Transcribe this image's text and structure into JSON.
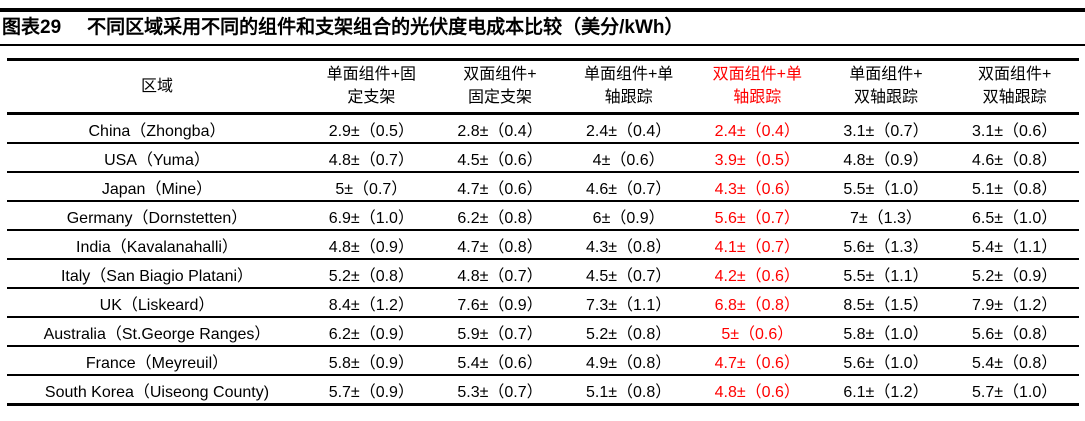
{
  "figure": {
    "number": "图表29",
    "title": "不同区域采用不同的组件和支架组合的光伏度电成本比较（美分/kWh）"
  },
  "colors": {
    "highlight_red": "#ff0000",
    "text": "#000000",
    "background": "#ffffff",
    "rule": "#000000"
  },
  "table": {
    "region_header": "区域",
    "columns": [
      {
        "line1": "单面组件+固",
        "line2": "定支架",
        "highlight": false
      },
      {
        "line1": "双面组件+",
        "line2": "固定支架",
        "highlight": false
      },
      {
        "line1": "单面组件+单",
        "line2": "轴跟踪",
        "highlight": false
      },
      {
        "line1": "双面组件+单",
        "line2": "轴跟踪",
        "highlight": true
      },
      {
        "line1": "单面组件+",
        "line2": "双轴跟踪",
        "highlight": false
      },
      {
        "line1": "双面组件+",
        "line2": "双轴跟踪",
        "highlight": false
      }
    ],
    "rows": [
      {
        "region": "China（Zhongba）",
        "cells": [
          "2.9±（0.5）",
          "2.8±（0.4）",
          "2.4±（0.4）",
          "2.4±（0.4）",
          "3.1±（0.7）",
          "3.1±（0.6）"
        ]
      },
      {
        "region": "USA（Yuma）",
        "cells": [
          "4.8±（0.7）",
          "4.5±（0.6）",
          "4±（0.6）",
          "3.9±（0.5）",
          "4.8±（0.9）",
          "4.6±（0.8）"
        ]
      },
      {
        "region": "Japan（Mine）",
        "cells": [
          "5±（0.7）",
          "4.7±（0.6）",
          "4.6±（0.7）",
          "4.3±（0.6）",
          "5.5±（1.0）",
          "5.1±（0.8）"
        ]
      },
      {
        "region": "Germany（Dornstetten）",
        "cells": [
          "6.9±（1.0）",
          "6.2±（0.8）",
          "6±（0.9）",
          "5.6±（0.7）",
          "7±（1.3）",
          "6.5±（1.0）"
        ]
      },
      {
        "region": "India（Kavalanahalli）",
        "cells": [
          "4.8±（0.9）",
          "4.7±（0.8）",
          "4.3±（0.8）",
          "4.1±（0.7）",
          "5.6±（1.3）",
          "5.4±（1.1）"
        ]
      },
      {
        "region": "Italy（San Biagio Platani）",
        "cells": [
          "5.2±（0.8）",
          "4.8±（0.7）",
          "4.5±（0.7）",
          "4.2±（0.6）",
          "5.5±（1.1）",
          "5.2±（0.9）"
        ]
      },
      {
        "region": "UK（Liskeard）",
        "cells": [
          "8.4±（1.2）",
          "7.6±（0.9）",
          "7.3±（1.1）",
          "6.8±（0.8）",
          "8.5±（1.5）",
          "7.9±（1.2）"
        ]
      },
      {
        "region": "Australia（St.George Ranges）",
        "cells": [
          "6.2±（0.9）",
          "5.9±（0.7）",
          "5.2±（0.8）",
          "5±（0.6）",
          "5.8±（1.0）",
          "5.6±（0.8）"
        ]
      },
      {
        "region": "France（Meyreuil）",
        "cells": [
          "5.8±（0.9）",
          "5.4±（0.6）",
          "4.9±（0.8）",
          "4.7±（0.6）",
          "5.6±（1.0）",
          "5.4±（0.8）"
        ]
      },
      {
        "region": "South Korea（Uiseong County)",
        "cells": [
          "5.7±（0.9）",
          "5.3±（0.7）",
          "5.1±（0.8）",
          "4.8±（0.6）",
          "6.1±（1.2）",
          "5.7±（1.0）"
        ]
      }
    ]
  },
  "chart_data": {
    "type": "table",
    "title": "图表29　不同区域采用不同的组件和支架组合的光伏度电成本比较（美分/kWh）",
    "unit": "美分/kWh",
    "value_format": "均值±（不确定度）",
    "highlighted_column": "双面组件+单轴跟踪",
    "columns": [
      "区域",
      "单面组件+固定支架",
      "双面组件+固定支架",
      "单面组件+单轴跟踪",
      "双面组件+单轴跟踪",
      "单面组件+双轴跟踪",
      "双面组件+双轴跟踪"
    ],
    "rows": [
      {
        "region": "China（Zhongba）",
        "values": [
          2.9,
          2.8,
          2.4,
          2.4,
          3.1,
          3.1
        ],
        "uncertainty": [
          0.5,
          0.4,
          0.4,
          0.4,
          0.7,
          0.6
        ]
      },
      {
        "region": "USA（Yuma）",
        "values": [
          4.8,
          4.5,
          4.0,
          3.9,
          4.8,
          4.6
        ],
        "uncertainty": [
          0.7,
          0.6,
          0.6,
          0.5,
          0.9,
          0.8
        ]
      },
      {
        "region": "Japan（Mine）",
        "values": [
          5.0,
          4.7,
          4.6,
          4.3,
          5.5,
          5.1
        ],
        "uncertainty": [
          0.7,
          0.6,
          0.7,
          0.6,
          1.0,
          0.8
        ]
      },
      {
        "region": "Germany（Dornstetten）",
        "values": [
          6.9,
          6.2,
          6.0,
          5.6,
          7.0,
          6.5
        ],
        "uncertainty": [
          1.0,
          0.8,
          0.9,
          0.7,
          1.3,
          1.0
        ]
      },
      {
        "region": "India（Kavalanahalli）",
        "values": [
          4.8,
          4.7,
          4.3,
          4.1,
          5.6,
          5.4
        ],
        "uncertainty": [
          0.9,
          0.8,
          0.8,
          0.7,
          1.3,
          1.1
        ]
      },
      {
        "region": "Italy（San Biagio Platani）",
        "values": [
          5.2,
          4.8,
          4.5,
          4.2,
          5.5,
          5.2
        ],
        "uncertainty": [
          0.8,
          0.7,
          0.7,
          0.6,
          1.1,
          0.9
        ]
      },
      {
        "region": "UK（Liskeard）",
        "values": [
          8.4,
          7.6,
          7.3,
          6.8,
          8.5,
          7.9
        ],
        "uncertainty": [
          1.2,
          0.9,
          1.1,
          0.8,
          1.5,
          1.2
        ]
      },
      {
        "region": "Australia（St.George Ranges）",
        "values": [
          6.2,
          5.9,
          5.2,
          5.0,
          5.8,
          5.6
        ],
        "uncertainty": [
          0.9,
          0.7,
          0.8,
          0.6,
          1.0,
          0.8
        ]
      },
      {
        "region": "France（Meyreuil）",
        "values": [
          5.8,
          5.4,
          4.9,
          4.7,
          5.6,
          5.4
        ],
        "uncertainty": [
          0.9,
          0.6,
          0.8,
          0.6,
          1.0,
          0.8
        ]
      },
      {
        "region": "South Korea（Uiseong County)",
        "values": [
          5.7,
          5.3,
          5.1,
          4.8,
          6.1,
          5.7
        ],
        "uncertainty": [
          0.9,
          0.7,
          0.8,
          0.6,
          1.2,
          1.0
        ]
      }
    ]
  }
}
